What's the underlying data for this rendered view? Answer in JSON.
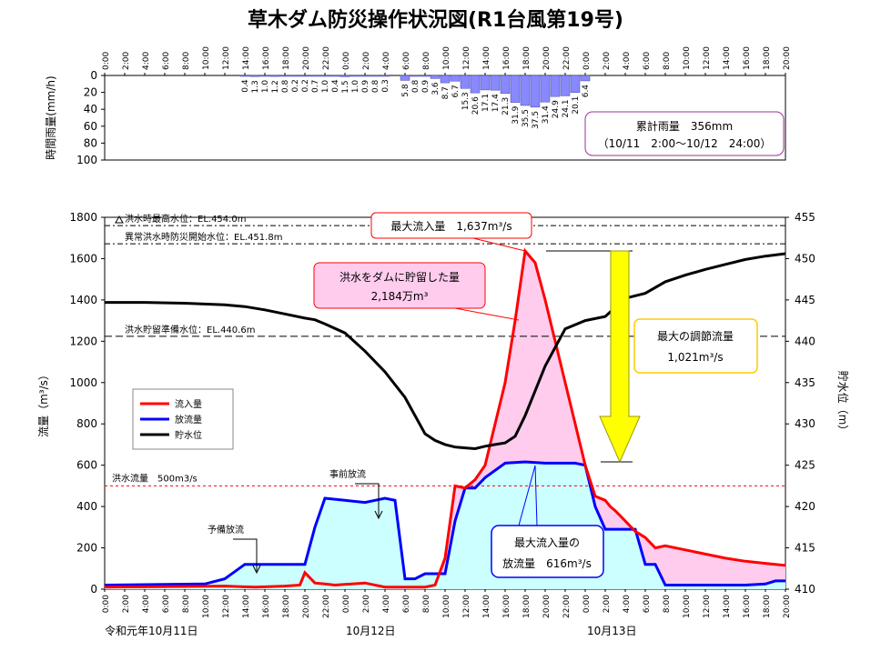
{
  "title": "草木ダム防災操作状況図(R1台風第19号)",
  "colors": {
    "inflow": "#ff0000",
    "outflow": "#0000ff",
    "level": "#000000",
    "rain": "#8888ff",
    "fill_inflow": "#ffccee",
    "fill_outflow": "#ccffff",
    "arrow": "#ffff00"
  },
  "chart_data": [
    {
      "type": "bar",
      "name": "rain",
      "ylabel": "時間雨量(mm/h)",
      "ylim": [
        0,
        100
      ],
      "y_ticks": [
        0,
        20,
        40,
        60,
        80,
        100
      ],
      "time_ticks": [
        "0:00",
        "2:00",
        "4:00",
        "6:00",
        "8:00",
        "10:00",
        "12:00",
        "14:00",
        "16:00",
        "18:00",
        "20:00",
        "22:00",
        "0:00",
        "2:00",
        "4:00",
        "6:00",
        "8:00",
        "10:00",
        "12:00",
        "14:00",
        "16:00",
        "18:00",
        "20:00",
        "22:00",
        "0:00",
        "2:00",
        "4:00",
        "6:00",
        "8:00",
        "10:00",
        "12:00",
        "14:00",
        "16:00",
        "18:00",
        "20:00"
      ],
      "bars": [
        {
          "h": 14,
          "v": "0.4"
        },
        {
          "h": 15,
          "v": "1.3"
        },
        {
          "h": 16,
          "v": "1.0"
        },
        {
          "h": 17,
          "v": "1.2"
        },
        {
          "h": 18,
          "v": "0.8"
        },
        {
          "h": 19,
          "v": "0.2"
        },
        {
          "h": 20,
          "v": "0.2"
        },
        {
          "h": 21,
          "v": "0.7"
        },
        {
          "h": 22,
          "v": "1.0"
        },
        {
          "h": 23,
          "v": "0.4"
        },
        {
          "h": 24,
          "v": "1.5"
        },
        {
          "h": 25,
          "v": "1.0"
        },
        {
          "h": 26,
          "v": "0.9"
        },
        {
          "h": 27,
          "v": "0.8"
        },
        {
          "h": 28,
          "v": "0.3"
        },
        {
          "h": 30,
          "v": "5.8"
        },
        {
          "h": 31,
          "v": "0.8"
        },
        {
          "h": 32,
          "v": "0.9"
        },
        {
          "h": 33,
          "v": "3.6"
        },
        {
          "h": 34,
          "v": "8.7"
        },
        {
          "h": 35,
          "v": "6.7"
        },
        {
          "h": 36,
          "v": "15.3"
        },
        {
          "h": 37,
          "v": "20.6"
        },
        {
          "h": 38,
          "v": "17.1"
        },
        {
          "h": 39,
          "v": "17.4"
        },
        {
          "h": 40,
          "v": "21.3"
        },
        {
          "h": 41,
          "v": "31.9"
        },
        {
          "h": 42,
          "v": "35.5"
        },
        {
          "h": 43,
          "v": "37.5"
        },
        {
          "h": 44,
          "v": "31.4"
        },
        {
          "h": 45,
          "v": "24.9"
        },
        {
          "h": 46,
          "v": "24.1"
        },
        {
          "h": 47,
          "v": "20.1"
        },
        {
          "h": 48,
          "v": "6.4"
        }
      ],
      "total_box": {
        "line1": "累計雨量　356mm",
        "line2": "（10/11　2:00～10/12　24:00）"
      }
    },
    {
      "type": "line",
      "name": "flow",
      "ylabel_left": "流量（m³/s）",
      "ylabel_right": "貯水位（m）",
      "ylim_left": [
        0,
        1800
      ],
      "ylim_right": [
        410,
        455
      ],
      "y_ticks_left": [
        0,
        200,
        400,
        600,
        800,
        1000,
        1200,
        1400,
        1600,
        1800
      ],
      "y_ticks_right": [
        410,
        415,
        420,
        425,
        430,
        435,
        440,
        445,
        450,
        455
      ],
      "x_range_hours": [
        0,
        68
      ],
      "date_labels": [
        "令和元年10月11日",
        "10月12日",
        "10月13日"
      ],
      "legend": [
        "流入量",
        "放流量",
        "貯水位"
      ],
      "ref_lines": [
        {
          "label": "洪水時最高水位：EL.454.0m",
          "level": 454.0
        },
        {
          "label": "異常洪水時防災開始水位：EL.451.8m",
          "level": 451.8
        },
        {
          "label": "洪水貯留準備水位：EL.440.6m",
          "level": 440.6
        },
        {
          "label": "洪水流量　500m3/s",
          "flow": 500
        }
      ],
      "series": [
        {
          "name": "流入量",
          "x": [
            0,
            12,
            15,
            18,
            19.5,
            20,
            21,
            22,
            23,
            26,
            28,
            30,
            32,
            33,
            34,
            35,
            36,
            37,
            38,
            40,
            41,
            42,
            43,
            44,
            45,
            46,
            47,
            48,
            49,
            50,
            50.5,
            51,
            52,
            53,
            54,
            55,
            56,
            58,
            60,
            62,
            64,
            66,
            68
          ],
          "y": [
            10,
            15,
            10,
            15,
            20,
            80,
            30,
            25,
            20,
            30,
            10,
            10,
            10,
            20,
            150,
            500,
            490,
            530,
            600,
            1000,
            1300,
            1637,
            1580,
            1400,
            1200,
            1000,
            800,
            600,
            450,
            430,
            400,
            380,
            330,
            280,
            250,
            200,
            210,
            190,
            170,
            150,
            135,
            125,
            115
          ]
        },
        {
          "name": "放流量",
          "x": [
            0,
            10,
            12,
            14,
            20,
            21,
            22,
            24,
            26,
            27,
            28,
            29,
            30,
            31,
            32,
            33,
            34,
            35,
            36,
            37,
            38,
            40,
            42,
            44,
            46,
            47,
            48,
            49,
            50,
            51,
            52,
            53,
            54,
            55,
            56,
            58,
            60,
            62,
            64,
            66,
            67,
            68
          ],
          "y": [
            20,
            25,
            50,
            120,
            120,
            300,
            440,
            430,
            420,
            430,
            440,
            430,
            50,
            50,
            75,
            75,
            75,
            330,
            490,
            490,
            540,
            610,
            616,
            610,
            610,
            610,
            600,
            400,
            290,
            290,
            290,
            290,
            120,
            120,
            20,
            20,
            20,
            20,
            20,
            25,
            40,
            40
          ]
        },
        {
          "name": "貯水位",
          "x": [
            0,
            4,
            8,
            12,
            14,
            16,
            18,
            20,
            21,
            22,
            24,
            26,
            28,
            30,
            31,
            32,
            33,
            34,
            35,
            36,
            37,
            38,
            39,
            40,
            41,
            42,
            44,
            46,
            48,
            50,
            52,
            54,
            56,
            58,
            60,
            62,
            64,
            66,
            68
          ],
          "y": [
            444.7,
            444.7,
            444.6,
            444.4,
            444.2,
            443.8,
            443.3,
            442.8,
            442.6,
            442.1,
            441.0,
            438.8,
            436.3,
            433.2,
            431.0,
            428.8,
            428.0,
            427.5,
            427.2,
            427.1,
            427.0,
            427.3,
            427.5,
            427.7,
            428.5,
            431.0,
            437.0,
            441.5,
            442.5,
            443.0,
            445.2,
            445.8,
            447.2,
            448.0,
            448.7,
            449.3,
            449.9,
            450.3,
            450.6
          ]
        }
      ],
      "annotations": {
        "max_inflow": "最大流入量　1,637m³/s",
        "storage_line1": "洪水をダムに貯留した量",
        "storage_line2": "2,184万m³",
        "max_reduction_line1": "最大の調節流量",
        "max_reduction_line2": "1,021m³/s",
        "max_outflow_line1": "最大流入量の",
        "max_outflow_line2": "放流量　616m³/s",
        "pre_release": "事前放流",
        "prep_release": "予備放流"
      }
    }
  ]
}
